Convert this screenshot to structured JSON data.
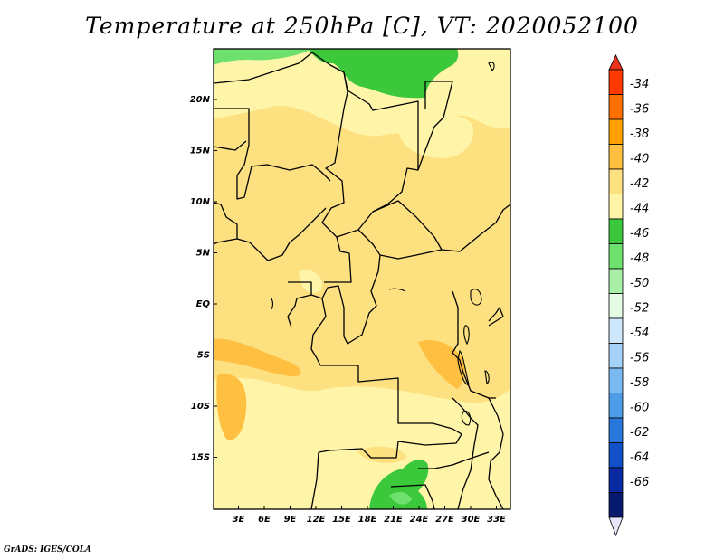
{
  "title": "Temperature at 250hPa [C], VT: 2020052100",
  "footer": "GrADS: IGES/COLA",
  "map": {
    "lat_labels": [
      "20N",
      "15N",
      "10N",
      "5N",
      "EQ",
      "5S",
      "10S",
      "15S"
    ],
    "lon_labels": [
      "3E",
      "6E",
      "9E",
      "12E",
      "15E",
      "18E",
      "21E",
      "24E",
      "27E",
      "30E",
      "33E"
    ]
  },
  "legend": {
    "labels": [
      "-34",
      "-36",
      "-38",
      "-40",
      "-42",
      "-44",
      "-46",
      "-48",
      "-50",
      "-52",
      "-54",
      "-56",
      "-58",
      "-60",
      "-62",
      "-64",
      "-66"
    ],
    "colors": [
      "#ff3a00",
      "#ff6e00",
      "#ffa000",
      "#ffbf40",
      "#fde080",
      "#fff5a8",
      "#3bc83b",
      "#6ee06e",
      "#a8f0a8",
      "#e4fbe4",
      "#cfe7fb",
      "#a6d1f7",
      "#7ab8f2",
      "#4e9ce8",
      "#2877db",
      "#1150c8",
      "#0a2aa3",
      "#071a70"
    ],
    "top_color": "#e8341a",
    "bottom_color": "#e6e6fa"
  }
}
